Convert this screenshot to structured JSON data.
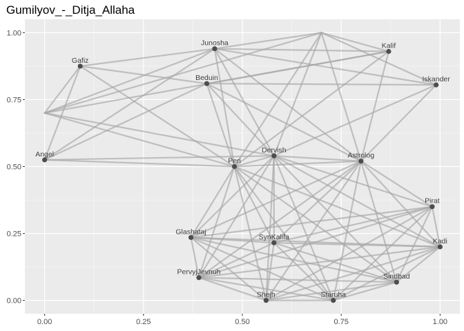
{
  "chart_data": {
    "type": "network",
    "title": "Gumilyov_-_Ditja_Allaha",
    "xlim": [
      -0.05,
      1.05
    ],
    "ylim": [
      -0.05,
      1.05
    ],
    "x_ticks": [
      {
        "value": 0.0,
        "label": "0.00"
      },
      {
        "value": 0.25,
        "label": "0.25"
      },
      {
        "value": 0.5,
        "label": "0.50"
      },
      {
        "value": 0.75,
        "label": "0.75"
      },
      {
        "value": 1.0,
        "label": "1.00"
      }
    ],
    "y_ticks": [
      {
        "value": 0.0,
        "label": "0.00"
      },
      {
        "value": 0.25,
        "label": "0.25"
      },
      {
        "value": 0.5,
        "label": "0.50"
      },
      {
        "value": 0.75,
        "label": "0.75"
      },
      {
        "value": 1.0,
        "label": "1.00"
      }
    ],
    "colors": {
      "panel": "#ebebeb",
      "grid_major": "#ffffff",
      "edge": "#a6a6a6",
      "node": "#4d4d4d",
      "label": "#404040"
    },
    "nodes": [
      {
        "id": "Gafiz",
        "label": "Gafiz",
        "x": 0.09,
        "y": 0.875
      },
      {
        "id": "Junosha",
        "label": "Junosha",
        "x": 0.43,
        "y": 0.94
      },
      {
        "id": "Kalif",
        "label": "Kalif",
        "x": 0.87,
        "y": 0.93
      },
      {
        "id": "Beduin",
        "label": "Beduin",
        "x": 0.41,
        "y": 0.81
      },
      {
        "id": "Iskander",
        "label": "Iskander",
        "x": 0.99,
        "y": 0.805
      },
      {
        "id": "Angel",
        "label": "Angel",
        "x": 0.0,
        "y": 0.525
      },
      {
        "id": "Dervish",
        "label": "Dervish",
        "x": 0.58,
        "y": 0.54
      },
      {
        "id": "Peri",
        "label": "Peri",
        "x": 0.48,
        "y": 0.5
      },
      {
        "id": "Astrolog",
        "label": "Astrolog",
        "x": 0.8,
        "y": 0.52
      },
      {
        "id": "Pirat",
        "label": "Pirat",
        "x": 0.98,
        "y": 0.35
      },
      {
        "id": "Glashataj",
        "label": "Glashataj",
        "x": 0.37,
        "y": 0.235
      },
      {
        "id": "SynKalifa",
        "label": "SynKalifa",
        "x": 0.58,
        "y": 0.215
      },
      {
        "id": "Kadi",
        "label": "Kadi",
        "x": 1.0,
        "y": 0.2
      },
      {
        "id": "PervyjJevnuh",
        "label": "PervyjJevnuh",
        "x": 0.39,
        "y": 0.085
      },
      {
        "id": "Sindbad",
        "label": "Sindbad",
        "x": 0.89,
        "y": 0.068
      },
      {
        "id": "Shejh",
        "label": "Shejh",
        "x": 0.56,
        "y": 0.0
      },
      {
        "id": "Staruha",
        "label": "Staruha",
        "x": 0.73,
        "y": 0.0
      }
    ],
    "anchors": [
      {
        "id": "A1",
        "x": 0.7,
        "y": 1.0
      },
      {
        "id": "A2",
        "x": 0.0,
        "y": 0.7
      }
    ],
    "edges": [
      [
        "A1",
        "Junosha"
      ],
      [
        "A1",
        "Kalif"
      ],
      [
        "A1",
        "Iskander"
      ],
      [
        "A1",
        "Dervish"
      ],
      [
        "A1",
        "Astrolog"
      ],
      [
        "A1",
        "Peri"
      ],
      [
        "A1",
        "A2"
      ],
      [
        "Junosha",
        "Kalif"
      ],
      [
        "Junosha",
        "Iskander"
      ],
      [
        "Junosha",
        "Gafiz"
      ],
      [
        "Junosha",
        "Peri"
      ],
      [
        "Junosha",
        "Dervish"
      ],
      [
        "Junosha",
        "Angel"
      ],
      [
        "Junosha",
        "A2"
      ],
      [
        "Junosha",
        "Astrolog"
      ],
      [
        "Gafiz",
        "Beduin"
      ],
      [
        "Gafiz",
        "Peri"
      ],
      [
        "Gafiz",
        "Angel"
      ],
      [
        "Gafiz",
        "A2"
      ],
      [
        "A2",
        "Dervish"
      ],
      [
        "A2",
        "Peri"
      ],
      [
        "A2",
        "Kalif"
      ],
      [
        "Beduin",
        "Iskander"
      ],
      [
        "Beduin",
        "Kalif"
      ],
      [
        "Beduin",
        "Peri"
      ],
      [
        "Beduin",
        "Dervish"
      ],
      [
        "Beduin",
        "Astrolog"
      ],
      [
        "Beduin",
        "Angel"
      ],
      [
        "Kalif",
        "Peri"
      ],
      [
        "Kalif",
        "Astrolog"
      ],
      [
        "Iskander",
        "Dervish"
      ],
      [
        "Iskander",
        "Astrolog"
      ],
      [
        "Angel",
        "Peri"
      ],
      [
        "Angel",
        "Dervish"
      ],
      [
        "Dervish",
        "Peri"
      ],
      [
        "Dervish",
        "Astrolog"
      ],
      [
        "Dervish",
        "Pirat"
      ],
      [
        "Dervish",
        "Kadi"
      ],
      [
        "Dervish",
        "Glashataj"
      ],
      [
        "Dervish",
        "SynKalifa"
      ],
      [
        "Dervish",
        "PervyjJevnuh"
      ],
      [
        "Dervish",
        "Shejh"
      ],
      [
        "Dervish",
        "Staruha"
      ],
      [
        "Dervish",
        "Sindbad"
      ],
      [
        "Peri",
        "Astrolog"
      ],
      [
        "Peri",
        "Glashataj"
      ],
      [
        "Peri",
        "SynKalifa"
      ],
      [
        "Peri",
        "PervyjJevnuh"
      ],
      [
        "Peri",
        "Shejh"
      ],
      [
        "Peri",
        "Staruha"
      ],
      [
        "Peri",
        "Kadi"
      ],
      [
        "Peri",
        "Sindbad"
      ],
      [
        "Astrolog",
        "Pirat"
      ],
      [
        "Astrolog",
        "Kadi"
      ],
      [
        "Astrolog",
        "Glashataj"
      ],
      [
        "Astrolog",
        "SynKalifa"
      ],
      [
        "Astrolog",
        "PervyjJevnuh"
      ],
      [
        "Astrolog",
        "Shejh"
      ],
      [
        "Astrolog",
        "Staruha"
      ],
      [
        "Astrolog",
        "Sindbad"
      ],
      [
        "Pirat",
        "Glashataj"
      ],
      [
        "Pirat",
        "SynKalifa"
      ],
      [
        "Pirat",
        "PervyjJevnuh"
      ],
      [
        "Pirat",
        "Shejh"
      ],
      [
        "Pirat",
        "Staruha"
      ],
      [
        "Pirat",
        "Sindbad"
      ],
      [
        "Pirat",
        "Kadi"
      ],
      [
        "Kadi",
        "Glashataj"
      ],
      [
        "Kadi",
        "SynKalifa"
      ],
      [
        "Kadi",
        "PervyjJevnuh"
      ],
      [
        "Kadi",
        "Shejh"
      ],
      [
        "Kadi",
        "Staruha"
      ],
      [
        "Kadi",
        "Sindbad"
      ],
      [
        "Glashataj",
        "SynKalifa"
      ],
      [
        "Glashataj",
        "PervyjJevnuh"
      ],
      [
        "Glashataj",
        "Shejh"
      ],
      [
        "Glashataj",
        "Staruha"
      ],
      [
        "Glashataj",
        "Sindbad"
      ],
      [
        "SynKalifa",
        "PervyjJevnuh"
      ],
      [
        "SynKalifa",
        "Shejh"
      ],
      [
        "SynKalifa",
        "Staruha"
      ],
      [
        "SynKalifa",
        "Sindbad"
      ],
      [
        "PervyjJevnuh",
        "Shejh"
      ],
      [
        "PervyjJevnuh",
        "Staruha"
      ],
      [
        "PervyjJevnuh",
        "Sindbad"
      ],
      [
        "Shejh",
        "Staruha"
      ],
      [
        "Shejh",
        "Sindbad"
      ],
      [
        "Staruha",
        "Sindbad"
      ]
    ]
  }
}
